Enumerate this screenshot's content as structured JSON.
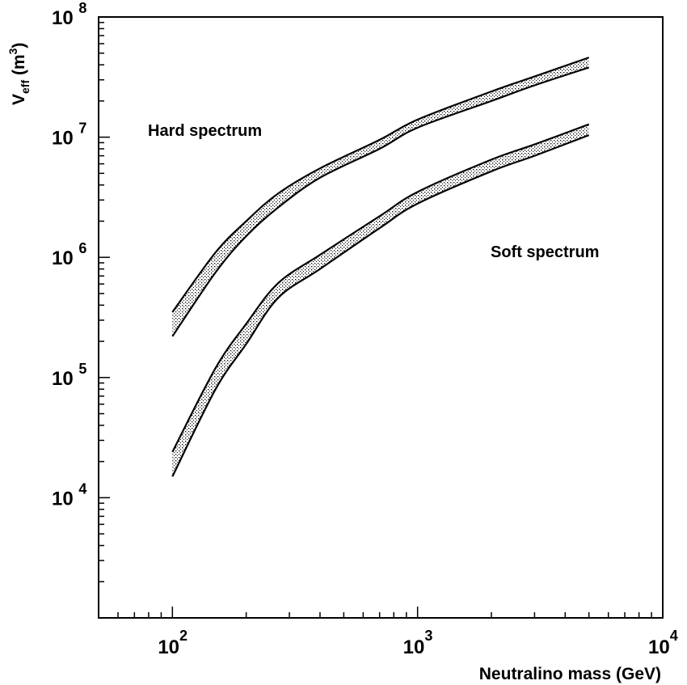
{
  "chart_data": {
    "type": "area",
    "title": "",
    "xlabel": "Neutralino mass (GeV)",
    "ylabel_main": "V",
    "ylabel_sub": "eff",
    "ylabel_unit": " (m",
    "ylabel_sup": "3",
    "ylabel_close": ")",
    "xscale": "log",
    "yscale": "log",
    "xlim": [
      50,
      10000
    ],
    "ylim": [
      1000,
      100000000
    ],
    "x_ticks": [
      {
        "base": "10",
        "exp": "2",
        "value": 100
      },
      {
        "base": "10",
        "exp": "3",
        "value": 1000
      },
      {
        "base": "10",
        "exp": "4",
        "value": 10000
      }
    ],
    "y_ticks": [
      {
        "base": "10",
        "exp": "4",
        "value": 10000
      },
      {
        "base": "10",
        "exp": "5",
        "value": 100000
      },
      {
        "base": "10",
        "exp": "6",
        "value": 1000000
      },
      {
        "base": "10",
        "exp": "7",
        "value": 10000000
      },
      {
        "base": "10",
        "exp": "8",
        "value": 100000000
      }
    ],
    "grid": false,
    "series": [
      {
        "name": "Hard spectrum",
        "x": [
          100,
          150,
          200,
          270,
          400,
          700,
          1000,
          2000,
          3000,
          5000
        ],
        "upper": [
          350000,
          1100000,
          2000000,
          3400000,
          5500000,
          9500000,
          14000000,
          24000000,
          32000000,
          46000000
        ],
        "lower": [
          220000,
          750000,
          1500000,
          2600000,
          4600000,
          8000000,
          12000000,
          20000000,
          27000000,
          38000000
        ]
      },
      {
        "name": "Soft spectrum",
        "x": [
          100,
          150,
          200,
          270,
          400,
          700,
          1000,
          2000,
          3000,
          5000
        ],
        "upper": [
          24000,
          120000,
          280000,
          610000,
          1050000,
          2200000,
          3500000,
          6500000,
          8700000,
          12800000
        ],
        "lower": [
          15000,
          80000,
          190000,
          460000,
          800000,
          1750000,
          2800000,
          5200000,
          7000000,
          10400000
        ]
      }
    ],
    "annotations": [
      "Hard spectrum",
      "Soft spectrum"
    ]
  }
}
